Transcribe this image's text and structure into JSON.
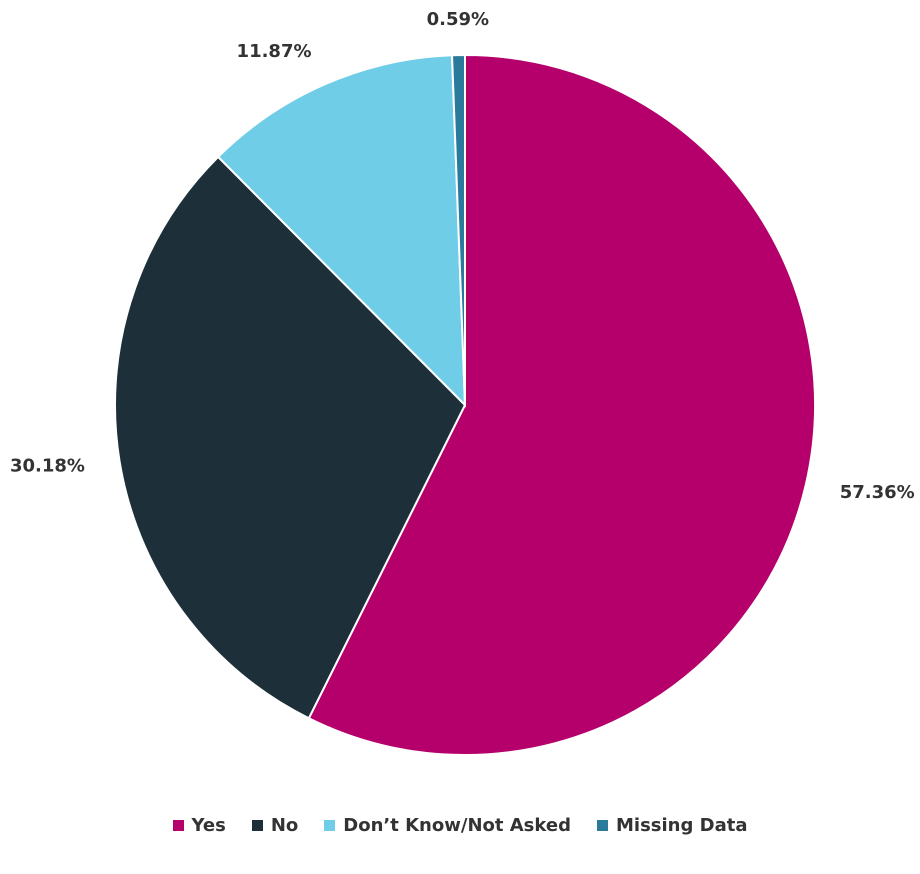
{
  "chart_data": {
    "type": "pie",
    "categories": [
      "Yes",
      "No",
      "Don’t Know/Not Asked",
      "Missing Data"
    ],
    "values": [
      57.36,
      30.18,
      11.87,
      0.59
    ],
    "value_labels": [
      "57.36%",
      "30.18%",
      "11.87%",
      "0.59%"
    ],
    "colors": [
      "#b5006b",
      "#1d3039",
      "#70cde8",
      "#2a7a9b"
    ],
    "legend": "bottom"
  }
}
